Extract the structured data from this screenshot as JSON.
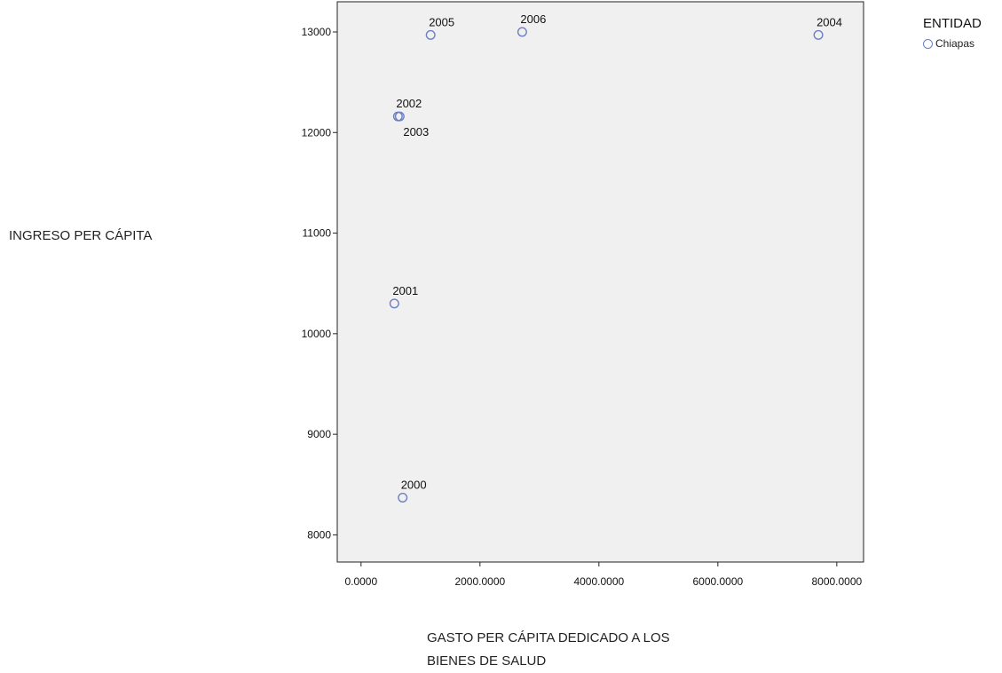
{
  "chart_data": {
    "type": "scatter",
    "xlabel_lines": [
      "GASTO PER CÁPITA DEDICADO A LOS",
      "BIENES DE SALUD"
    ],
    "ylabel": "INGRESO PER CÁPITA",
    "xlim": [
      -400,
      8450
    ],
    "ylim": [
      7730,
      13300
    ],
    "xticks": [
      0,
      2000,
      4000,
      6000,
      8000
    ],
    "xtick_labels": [
      "0.0000",
      "2000.0000",
      "4000.0000",
      "6000.0000",
      "8000.0000"
    ],
    "yticks": [
      8000,
      9000,
      10000,
      11000,
      12000,
      13000
    ],
    "ytick_labels": [
      "8000",
      "9000",
      "10000",
      "11000",
      "12000",
      "13000"
    ],
    "grid": false,
    "plot_background": "#f0f0f0",
    "marker_color": "#6b7fc4",
    "marker": "hollow-circle",
    "legend": {
      "title": "ENTIDAD",
      "placement": "outside-top-right",
      "entries": [
        "Chiapas"
      ]
    },
    "series": [
      {
        "name": "Chiapas",
        "points": [
          {
            "x": 700,
            "y": 8370,
            "label": "2000",
            "label_pos": "above"
          },
          {
            "x": 560,
            "y": 10300,
            "label": "2001",
            "label_pos": "above"
          },
          {
            "x": 620,
            "y": 12160,
            "label": "2002",
            "label_pos": "above"
          },
          {
            "x": 650,
            "y": 12160,
            "label": "2003",
            "label_pos": "below"
          },
          {
            "x": 7690,
            "y": 12970,
            "label": "2004",
            "label_pos": "above"
          },
          {
            "x": 1170,
            "y": 12970,
            "label": "2005",
            "label_pos": "above"
          },
          {
            "x": 2710,
            "y": 13000,
            "label": "2006",
            "label_pos": "above"
          }
        ]
      }
    ]
  }
}
